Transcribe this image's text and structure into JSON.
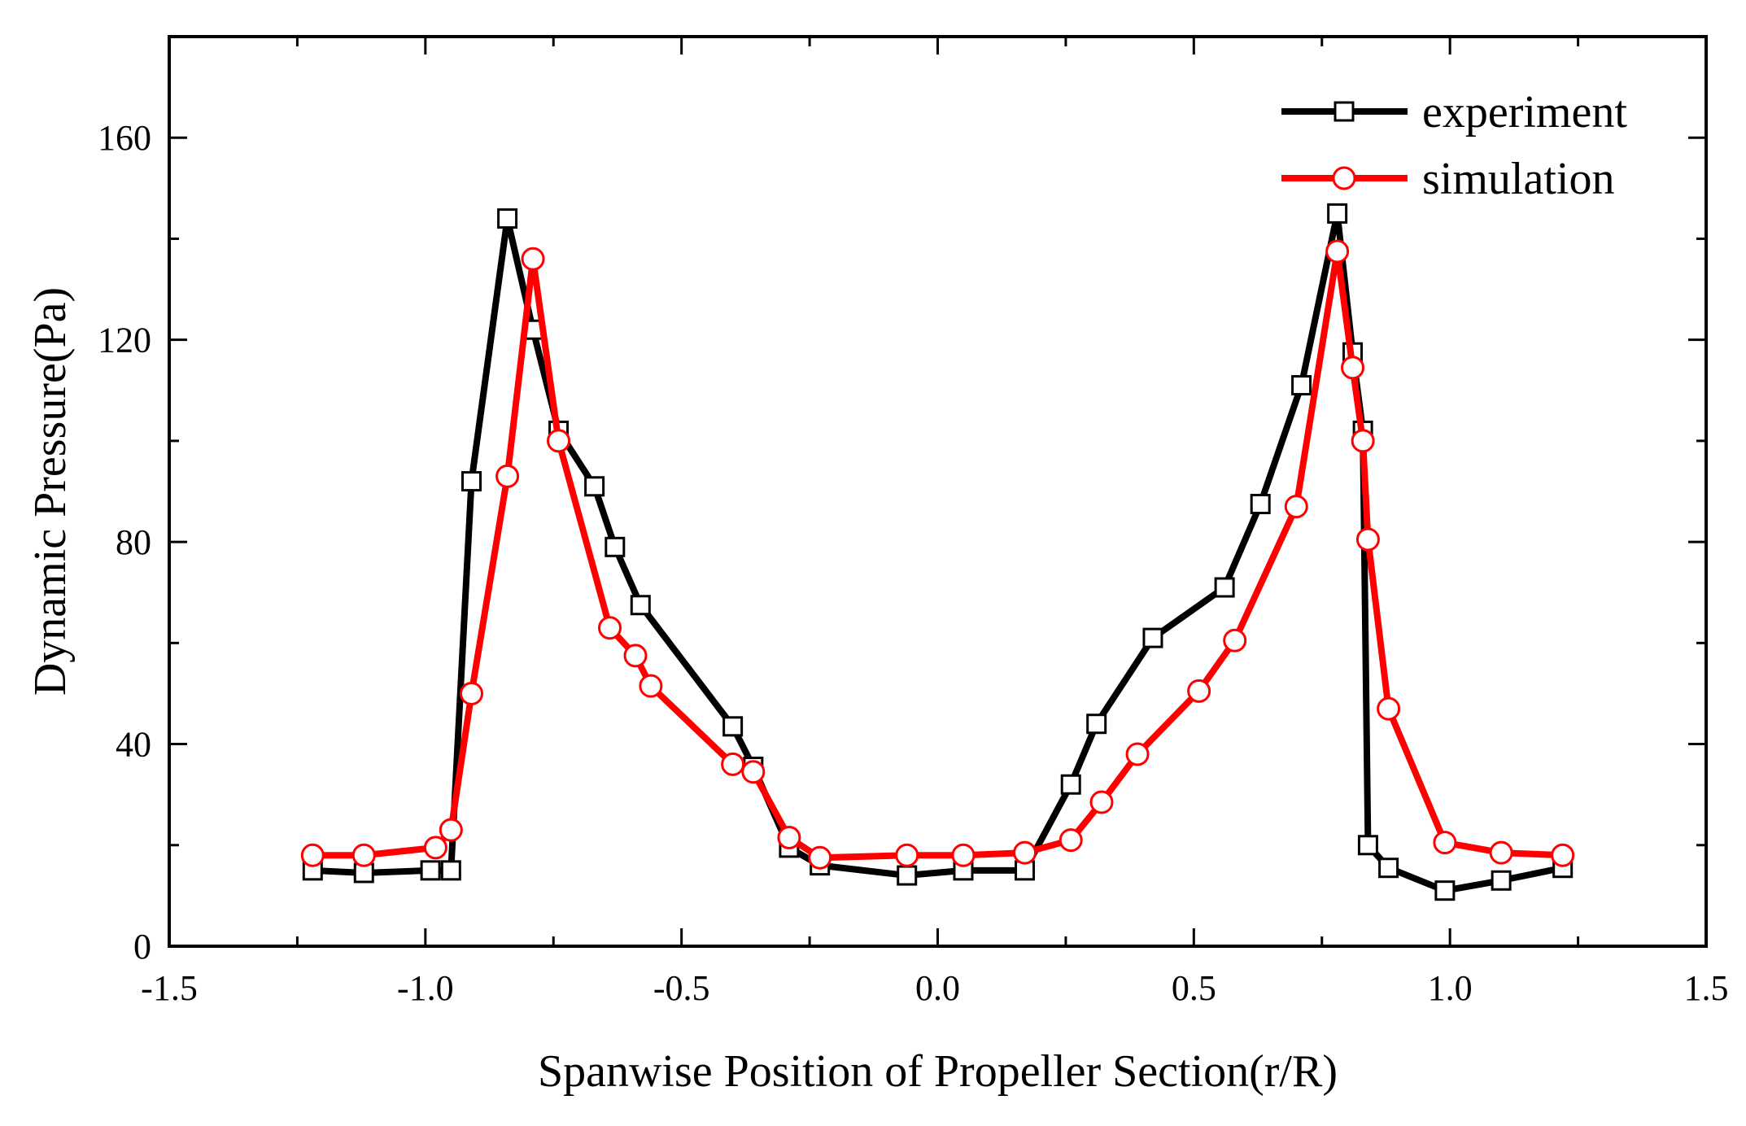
{
  "chart_data": {
    "type": "line",
    "title": "",
    "xlabel": "Spanwise Position of Propeller Section(r/R)",
    "ylabel": "Dynamic Pressure(Pa)",
    "xlim": [
      -1.5,
      1.5
    ],
    "ylim": [
      0,
      180
    ],
    "xticks": [
      -1.5,
      -1.0,
      -0.5,
      0.0,
      0.5,
      1.0,
      1.5
    ],
    "xtick_labels": [
      "-1.5",
      "-1.0",
      "-0.5",
      "0.0",
      "0.5",
      "1.0",
      "1.5"
    ],
    "yticks": [
      0,
      40,
      80,
      120,
      160
    ],
    "ytick_labels": [
      "0",
      "40",
      "80",
      "120",
      "160"
    ],
    "grid": false,
    "legend_position": "top-right",
    "series": [
      {
        "name": "experiment",
        "color": "#000000",
        "marker": "square",
        "x": [
          -1.22,
          -1.12,
          -0.99,
          -0.95,
          -0.91,
          -0.84,
          -0.79,
          -0.74,
          -0.67,
          -0.63,
          -0.58,
          -0.4,
          -0.36,
          -0.29,
          -0.23,
          -0.06,
          0.05,
          0.17,
          0.26,
          0.31,
          0.42,
          0.56,
          0.63,
          0.71,
          0.78,
          0.81,
          0.83,
          0.84,
          0.88,
          0.99,
          1.1,
          1.22
        ],
        "values": [
          15,
          14.5,
          15,
          15,
          92,
          144,
          122,
          102,
          91,
          79,
          67.5,
          43.5,
          35.5,
          19.5,
          16,
          14,
          15,
          15,
          32,
          44,
          61,
          71,
          87.5,
          111,
          145,
          117.5,
          102,
          20,
          15.5,
          11,
          13,
          15.5
        ]
      },
      {
        "name": "simulation",
        "color": "#ff0000",
        "marker": "circle",
        "x": [
          -1.22,
          -1.12,
          -0.98,
          -0.95,
          -0.91,
          -0.84,
          -0.79,
          -0.74,
          -0.64,
          -0.59,
          -0.56,
          -0.4,
          -0.36,
          -0.29,
          -0.23,
          -0.06,
          0.05,
          0.17,
          0.26,
          0.32,
          0.39,
          0.51,
          0.58,
          0.7,
          0.78,
          0.81,
          0.83,
          0.84,
          0.88,
          0.99,
          1.1,
          1.22
        ],
        "values": [
          18,
          18,
          19.5,
          23,
          50,
          93,
          136,
          100,
          63,
          57.5,
          51.5,
          36,
          34.5,
          21.5,
          17.5,
          18,
          18,
          18.5,
          21,
          28.5,
          38,
          50.5,
          60.5,
          87,
          137.5,
          114.5,
          100,
          80.5,
          47,
          20.5,
          18.5,
          18
        ]
      }
    ]
  }
}
